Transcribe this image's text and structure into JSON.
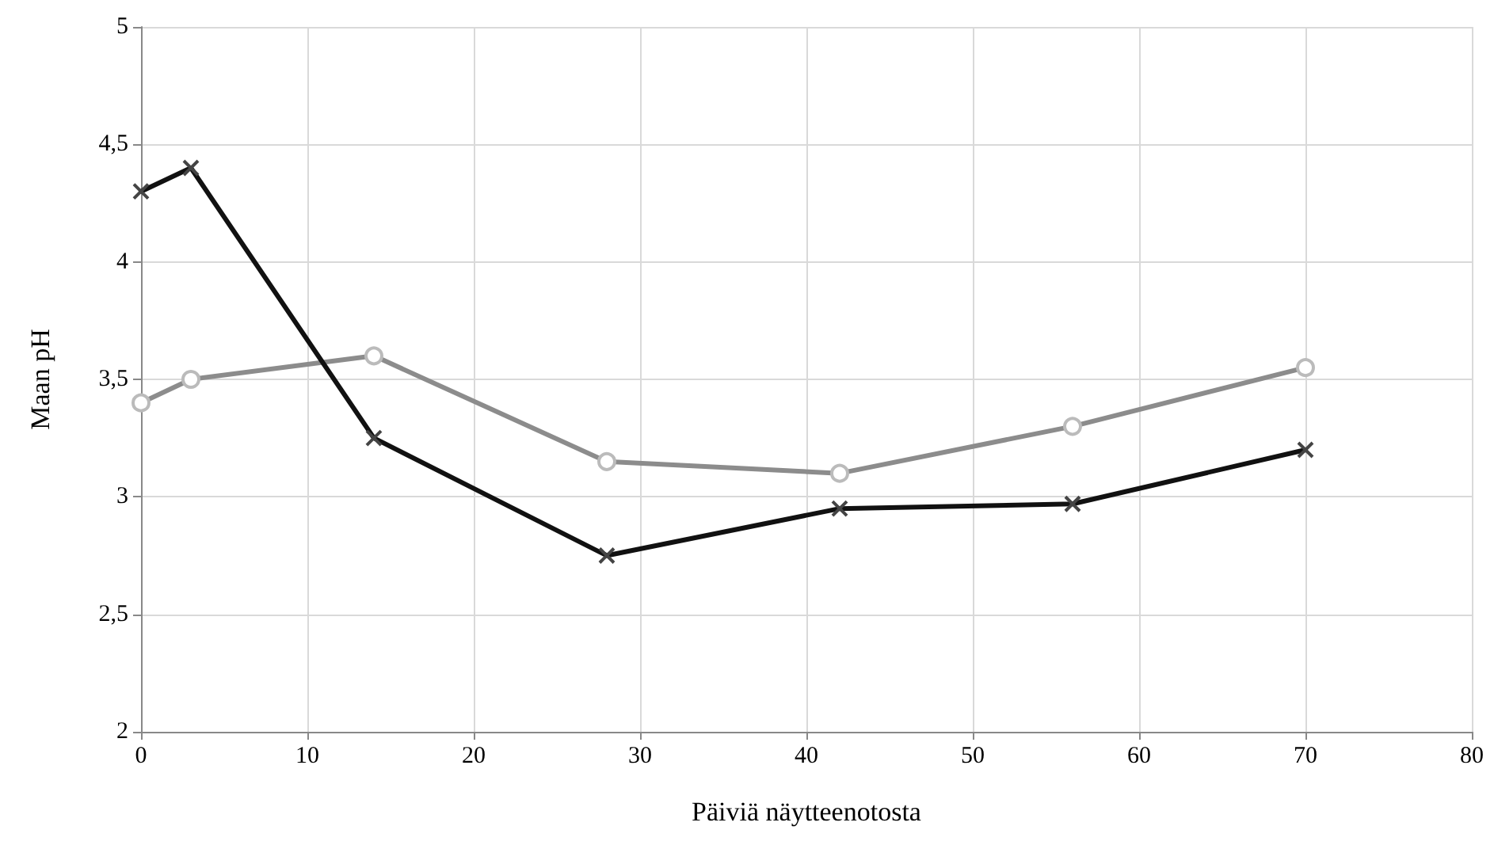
{
  "chart_data": {
    "type": "line",
    "xlabel": "Päiviä näytteenotosta",
    "ylabel": "Maan pH",
    "xlim": [
      0,
      80
    ],
    "xticks": [
      0,
      10,
      20,
      30,
      40,
      50,
      60,
      70,
      80
    ],
    "ylim": [
      2,
      5
    ],
    "yticks": [
      2,
      {
        "value": 2.5,
        "label": "2,5"
      },
      3,
      {
        "value": 3.5,
        "label": "3,5"
      },
      4,
      {
        "value": 4.5,
        "label": "4,5"
      },
      5
    ],
    "grid": true,
    "legend": false,
    "line_style": "solid",
    "series": [
      {
        "color": "#111111",
        "marker": "cross",
        "x": [
          0,
          3,
          14,
          28,
          42,
          56,
          70
        ],
        "values": [
          4.3,
          4.4,
          3.25,
          2.75,
          2.95,
          2.97,
          3.2
        ]
      },
      {
        "color": "#8c8c8c",
        "marker": "circle",
        "x": [
          0,
          3,
          14,
          28,
          42,
          56,
          70
        ],
        "values": [
          3.4,
          3.5,
          3.6,
          3.15,
          3.1,
          3.3,
          3.55
        ]
      }
    ]
  }
}
